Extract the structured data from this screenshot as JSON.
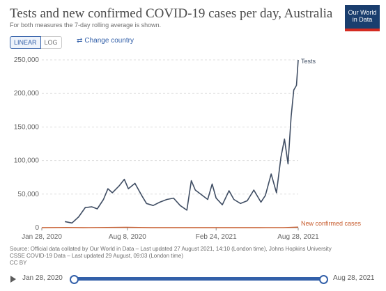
{
  "header": {
    "title": "Tests and new confirmed COVID-19 cases per day, Australia",
    "subtitle": "For both measures the 7-day rolling average is shown.",
    "logo_text": "Our World in Data"
  },
  "controls": {
    "linear_label": "LINEAR",
    "log_label": "LOG",
    "change_country_label": "Change country",
    "change_country_icon": "swap-arrows-icon"
  },
  "colors": {
    "tests_line": "#3f4d63",
    "cases_line": "#c65a2b",
    "accent": "#3360a9",
    "logo_bg": "#1a3e6e"
  },
  "chart_data": {
    "type": "line",
    "title": "Tests and new confirmed COVID-19 cases per day, Australia",
    "subtitle": "For both measures the 7-day rolling average is shown.",
    "y_scale": "linear",
    "ylim": [
      0,
      250000
    ],
    "y_ticks": [
      0,
      50000,
      100000,
      150000,
      200000,
      250000
    ],
    "y_tick_labels": [
      "0",
      "50,000",
      "100,000",
      "150,000",
      "200,000",
      "250,000"
    ],
    "x_ticks": [
      "2020-01-28",
      "2020-08-08",
      "2021-02-24",
      "2021-08-28"
    ],
    "x_tick_labels": [
      "Jan 28, 2020",
      "Aug 8, 2020",
      "Feb 24, 2021",
      "Aug 28, 2021"
    ],
    "xlim": [
      "2020-01-28",
      "2021-08-28"
    ],
    "grid": "horizontal dashed",
    "series": [
      {
        "name": "Tests",
        "points": [
          [
            "2020-03-20",
            9000
          ],
          [
            "2020-04-05",
            7000
          ],
          [
            "2020-04-20",
            16000
          ],
          [
            "2020-05-05",
            30000
          ],
          [
            "2020-05-20",
            31000
          ],
          [
            "2020-06-01",
            28000
          ],
          [
            "2020-06-15",
            42000
          ],
          [
            "2020-06-25",
            58000
          ],
          [
            "2020-07-05",
            52000
          ],
          [
            "2020-07-20",
            62000
          ],
          [
            "2020-08-01",
            72000
          ],
          [
            "2020-08-10",
            58000
          ],
          [
            "2020-08-25",
            66000
          ],
          [
            "2020-09-10",
            47000
          ],
          [
            "2020-09-20",
            36000
          ],
          [
            "2020-10-05",
            33000
          ],
          [
            "2020-10-20",
            38000
          ],
          [
            "2020-11-05",
            42000
          ],
          [
            "2020-11-20",
            44000
          ],
          [
            "2020-12-05",
            33000
          ],
          [
            "2020-12-20",
            26000
          ],
          [
            "2020-12-30",
            70000
          ],
          [
            "2021-01-08",
            56000
          ],
          [
            "2021-01-20",
            50000
          ],
          [
            "2021-02-05",
            42000
          ],
          [
            "2021-02-15",
            65000
          ],
          [
            "2021-02-24",
            44000
          ],
          [
            "2021-03-10",
            34000
          ],
          [
            "2021-03-25",
            55000
          ],
          [
            "2021-04-05",
            42000
          ],
          [
            "2021-04-20",
            36000
          ],
          [
            "2021-05-05",
            40000
          ],
          [
            "2021-05-20",
            56000
          ],
          [
            "2021-06-05",
            38000
          ],
          [
            "2021-06-15",
            48000
          ],
          [
            "2021-06-28",
            80000
          ],
          [
            "2021-07-10",
            52000
          ],
          [
            "2021-07-20",
            105000
          ],
          [
            "2021-07-28",
            132000
          ],
          [
            "2021-08-05",
            95000
          ],
          [
            "2021-08-12",
            165000
          ],
          [
            "2021-08-18",
            205000
          ],
          [
            "2021-08-24",
            212000
          ],
          [
            "2021-08-28",
            250000
          ]
        ],
        "end_label": "Tests"
      },
      {
        "name": "New confirmed cases",
        "points": [
          [
            "2020-01-28",
            0
          ],
          [
            "2020-03-25",
            350
          ],
          [
            "2020-05-01",
            20
          ],
          [
            "2020-08-05",
            600
          ],
          [
            "2020-10-01",
            20
          ],
          [
            "2021-01-01",
            10
          ],
          [
            "2021-06-01",
            10
          ],
          [
            "2021-07-25",
            150
          ],
          [
            "2021-08-28",
            800
          ]
        ],
        "end_label": "New confirmed cases"
      }
    ]
  },
  "source": {
    "line1": "Source: Official data collated by Our World in Data – Last updated 27 August 2021, 14:10 (London time), Johns Hopkins University",
    "line2": "CSSE COVID-19 Data – Last updated 29 August, 09:03 (London time)",
    "license": "CC BY"
  },
  "timeline": {
    "start_label": "Jan 28, 2020",
    "end_label": "Aug 28, 2021",
    "play_icon": "play-icon"
  }
}
